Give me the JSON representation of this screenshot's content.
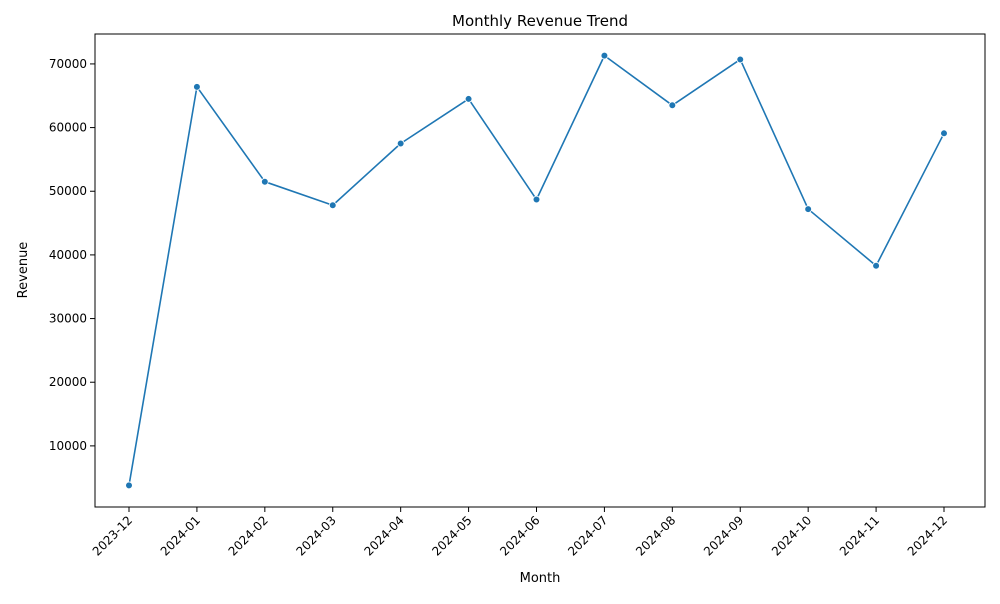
{
  "chart_data": {
    "type": "line",
    "title": "Monthly Revenue Trend",
    "xlabel": "Month",
    "ylabel": "Revenue",
    "categories": [
      "2023-12",
      "2024-01",
      "2024-02",
      "2024-03",
      "2024-04",
      "2024-05",
      "2024-06",
      "2024-07",
      "2024-08",
      "2024-09",
      "2024-10",
      "2024-11",
      "2024-12"
    ],
    "series": [
      {
        "values": [
          3800,
          66400,
          51500,
          47800,
          57500,
          64500,
          48700,
          71300,
          63500,
          70700,
          47200,
          38300,
          59100
        ],
        "color": "#1f77b4",
        "marker": "circle"
      }
    ],
    "yticks": [
      10000,
      20000,
      30000,
      40000,
      50000,
      60000,
      70000
    ],
    "ylim": [
      400,
      74700
    ],
    "grid": false,
    "legend": "none"
  }
}
